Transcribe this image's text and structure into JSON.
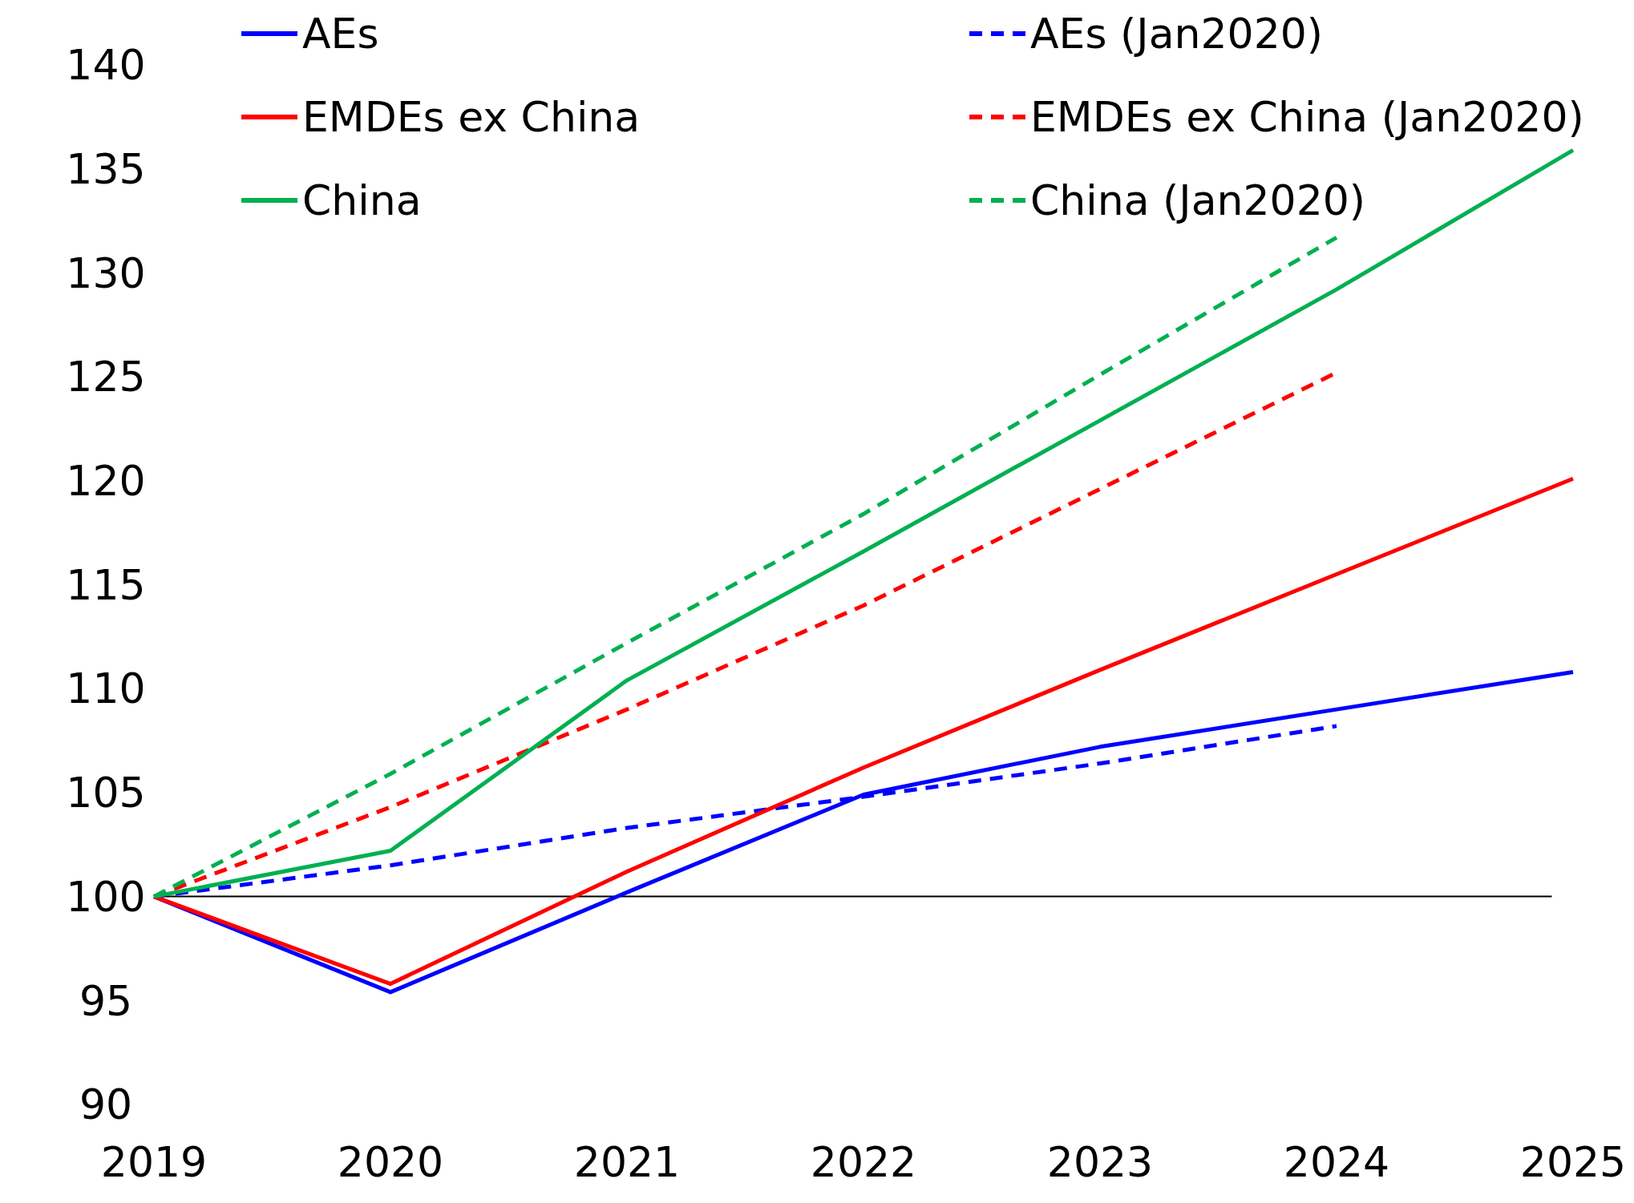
{
  "chart_data": {
    "type": "line",
    "x": [
      2019,
      2020,
      2021,
      2022,
      2023,
      2024,
      2025
    ],
    "xlim": [
      2019,
      2025
    ],
    "xticks": [
      2019,
      2020,
      2021,
      2022,
      2023,
      2024,
      2025
    ],
    "ylim": [
      90,
      140
    ],
    "yticks": [
      90,
      95,
      100,
      105,
      110,
      115,
      120,
      125,
      130,
      135,
      140
    ],
    "legend": "top",
    "grid": false,
    "marker": "none",
    "series": [
      {
        "name": "AEs",
        "color": "#0000ff",
        "line_style": "solid",
        "values": [
          100,
          95.4,
          100.2,
          104.9,
          107.2,
          109.0,
          110.8
        ]
      },
      {
        "name": "AEs (Jan2020)",
        "color": "#0000ff",
        "line_style": "dashed",
        "values": [
          100,
          101.5,
          103.3,
          104.8,
          106.4,
          108.2,
          null
        ]
      },
      {
        "name": "EMDEs ex China",
        "color": "#ff0000",
        "line_style": "solid",
        "values": [
          100,
          95.8,
          101.2,
          106.2,
          110.9,
          115.5,
          120.1
        ]
      },
      {
        "name": "EMDEs ex China (Jan2020)",
        "color": "#ff0000",
        "line_style": "dashed",
        "values": [
          100,
          104.3,
          109.0,
          114.0,
          119.6,
          125.2,
          null
        ]
      },
      {
        "name": "China",
        "color": "#00b050",
        "line_style": "solid",
        "values": [
          100,
          102.2,
          110.4,
          116.6,
          122.9,
          129.2,
          135.9
        ]
      },
      {
        "name": "China (Jan2020)",
        "color": "#00b050",
        "line_style": "dashed",
        "values": [
          100,
          105.9,
          112.2,
          118.4,
          125.1,
          131.7,
          null
        ]
      }
    ],
    "ref_lines": [
      {
        "axis": "y",
        "value": 100,
        "color": "#000000",
        "line_style": "solid"
      }
    ]
  }
}
